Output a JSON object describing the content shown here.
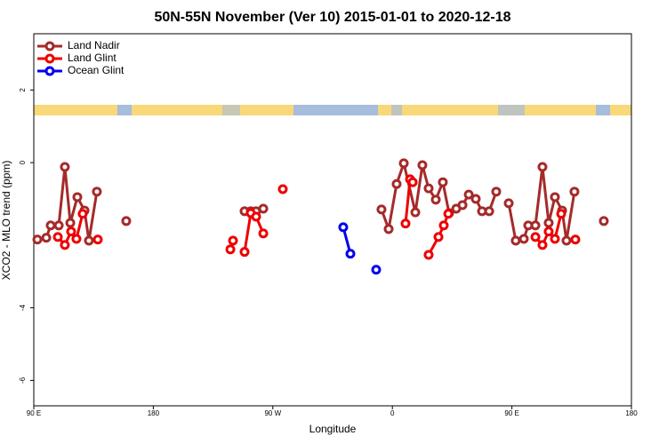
{
  "chart_data": {
    "type": "line",
    "title": "50N-55N November (Ver 10)   2015-01-01 to 2020-12-18",
    "x_label": "Longitude",
    "y_label": "XCO2 - MLO trend (ppm)",
    "xlim": [
      90,
      540
    ],
    "ylim": [
      -6.7,
      3.55
    ],
    "xticks": [
      {
        "value": 90,
        "label": "90 E"
      },
      {
        "value": 180,
        "label": "180"
      },
      {
        "value": 270,
        "label": "90 W"
      },
      {
        "value": 360,
        "label": "0"
      },
      {
        "value": 450,
        "label": "90 E"
      },
      {
        "value": 540,
        "label": "180"
      }
    ],
    "yticks": [
      -6,
      -4,
      0,
      2
    ],
    "legend": "top-left",
    "series": [
      {
        "name": "Land Nadir",
        "color": "#a52a2a",
        "x": [
          92.7,
          99.4,
          102.7,
          108.8,
          113.4,
          117.5,
          122.8,
          128.2,
          131.5,
          137.5,
          null,
          159.6,
          null,
          248.7,
          253.4,
          257.4,
          262.8,
          null,
          351.8,
          357.2,
          363.2,
          368.6,
          377.3,
          382.6,
          387.3,
          392.7,
          398.0,
          402.7,
          408.1,
          412.8,
          417.5,
          422.8,
          427.5,
          432.9,
          438.2,
          null,
          447.6,
          452.9,
          459.0,
          462.3,
          467.7,
          473.0,
          477.7,
          482.4,
          487.8,
          491.1,
          497.1,
          null,
          519.2
        ],
        "values": [
          -2.12,
          -2.07,
          -1.73,
          -1.73,
          -0.12,
          -1.66,
          -0.95,
          -1.32,
          -2.15,
          -0.8,
          null,
          -1.61,
          null,
          -1.34,
          -1.34,
          -1.34,
          -1.27,
          null,
          -1.29,
          -1.83,
          -0.59,
          -0.02,
          -1.37,
          -0.07,
          -0.71,
          -1.02,
          -0.54,
          -1.39,
          -1.27,
          -1.17,
          -0.88,
          -1.0,
          -1.34,
          -1.34,
          -0.8,
          null,
          -1.12,
          -2.15,
          -2.1,
          -1.73,
          -1.73,
          -0.12,
          -1.66,
          -0.95,
          -1.32,
          -2.15,
          -0.8,
          null,
          -1.61
        ]
      },
      {
        "name": "Land Glint",
        "color": "#ee0000",
        "x": [
          108.1,
          113.4,
          118.1,
          122.1,
          126.8,
          null,
          138.2,
          null,
          238.0,
          240.0,
          null,
          248.7,
          253.4,
          257.4,
          262.8,
          null,
          277.5,
          null,
          369.9,
          373.3,
          375.3,
          null,
          387.3,
          394.7,
          398.7,
          402.1,
          null,
          467.7,
          473.0,
          477.7,
          482.4,
          487.1,
          null,
          497.8
        ],
        "values": [
          -2.05,
          -2.27,
          -1.9,
          -2.1,
          -1.41,
          null,
          -2.12,
          null,
          -2.39,
          -2.15,
          null,
          -2.46,
          -1.39,
          -1.49,
          -1.95,
          null,
          -0.73,
          null,
          -1.68,
          -0.46,
          -0.54,
          null,
          -2.54,
          -2.05,
          -1.73,
          -1.41,
          null,
          -2.05,
          -2.27,
          -1.9,
          -2.1,
          -1.41,
          null,
          -2.12
        ]
      },
      {
        "name": "Ocean Glint",
        "color": "#0000ee",
        "x": [
          323.0,
          328.4,
          null,
          347.8
        ],
        "values": [
          -1.78,
          -2.51,
          null,
          -2.95
        ]
      }
    ]
  }
}
